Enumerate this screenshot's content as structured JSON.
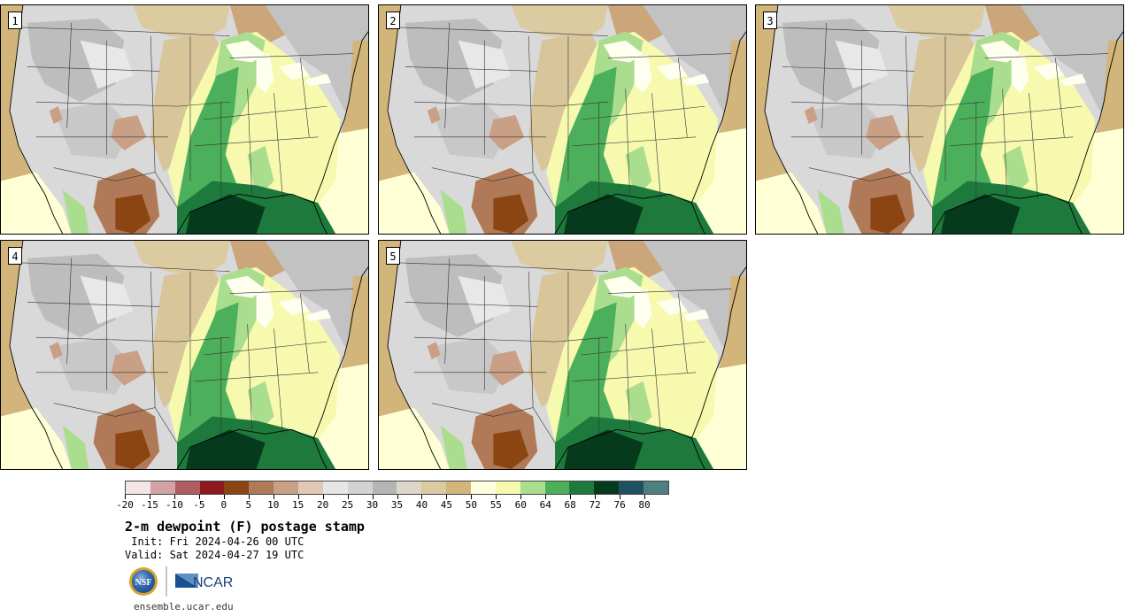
{
  "panels": [
    {
      "number": "1"
    },
    {
      "number": "2"
    },
    {
      "number": "3"
    },
    {
      "number": "4"
    },
    {
      "number": "5"
    }
  ],
  "colorbar": {
    "colors": [
      "#f3e6e6",
      "#d2a3a6",
      "#b15d60",
      "#8d1a1e",
      "#8b4513",
      "#b07a58",
      "#c9a085",
      "#e2c9b5",
      "#e6e6e6",
      "#d3d3d3",
      "#b5b5b5",
      "#dcd7c8",
      "#dccaa0",
      "#d2b57a",
      "#ffffe0",
      "#f6f9ae",
      "#aadd8e",
      "#4caf5b",
      "#1e7a3c",
      "#053b1c",
      "#1e5263",
      "#4f7f80"
    ],
    "labels": [
      "-20",
      "-15",
      "-10",
      "-5",
      "0",
      "5",
      "10",
      "15",
      "20",
      "25",
      "30",
      "35",
      "40",
      "45",
      "50",
      "55",
      "60",
      "64",
      "68",
      "72",
      "76",
      "80"
    ]
  },
  "title": "2-m dewpoint (F) postage stamp",
  "init": " Init: Fri 2024-04-26 00 UTC",
  "valid": "Valid: Sat 2024-04-27 19 UTC",
  "logos": {
    "nsf": "NSF",
    "ncar": "NCAR"
  },
  "url": "ensemble.ucar.edu"
}
